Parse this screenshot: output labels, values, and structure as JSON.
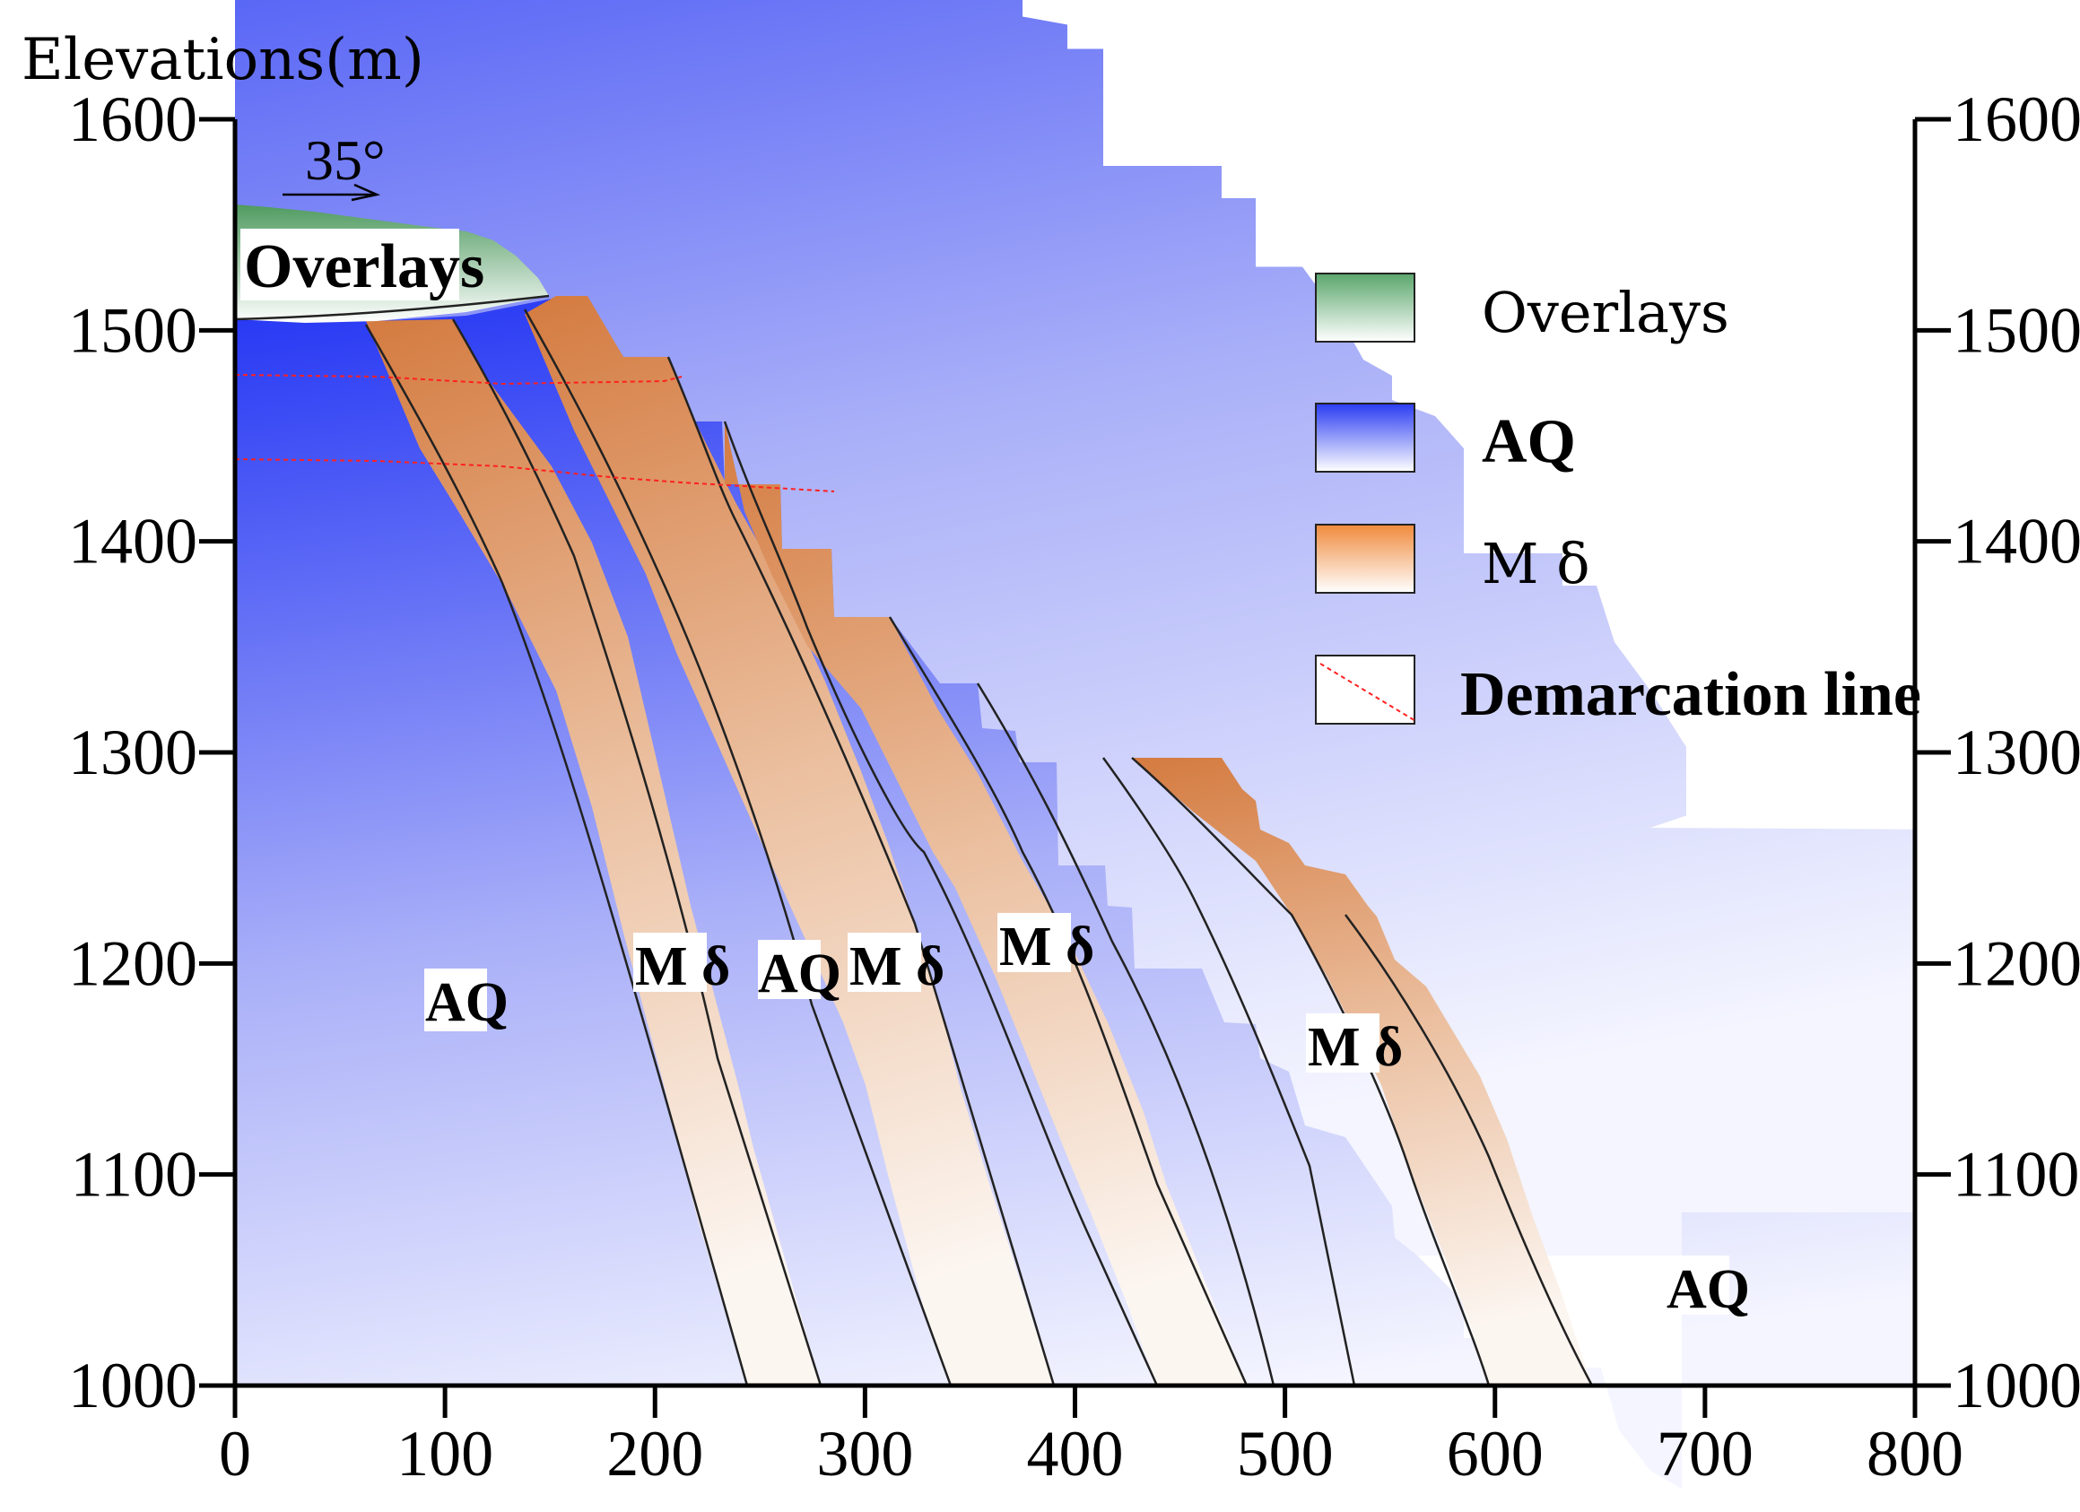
{
  "figure": {
    "y_axis_title": "Elevations(m)",
    "dip_label": "35°",
    "x_ticks": [
      "0",
      "100",
      "200",
      "300",
      "400",
      "500",
      "600",
      "700",
      "800"
    ],
    "y_ticks_left": [
      "1000",
      "1100",
      "1200",
      "1300",
      "1400",
      "1500",
      "1600"
    ],
    "y_ticks_right": [
      "1000",
      "1100",
      "1200",
      "1300",
      "1400",
      "1500",
      "1600"
    ],
    "x_range": [
      0,
      800
    ],
    "y_range": [
      1000,
      1600
    ]
  },
  "labels": {
    "overlays": "Overlays",
    "zone_aq_left": "AQ",
    "zone_md_1": "M δ",
    "zone_aq_2": "AQ",
    "zone_md_2": "M δ",
    "zone_md_3": "M δ",
    "zone_md_4": "M δ",
    "zone_aq_right": "AQ"
  },
  "legend": {
    "items": [
      {
        "label": "Overlays",
        "color_top": "#5aa66b",
        "color_bottom": "#ffffff"
      },
      {
        "label": "AQ",
        "color_top": "#2a3cf2",
        "color_bottom": "#ffffff"
      },
      {
        "label": "M δ",
        "color_top": "#f08a3c",
        "color_bottom": "#ffffff"
      },
      {
        "label": "Demarcation line",
        "line_color": "#ff2020"
      }
    ]
  },
  "colors": {
    "overlay": "#5aa66b",
    "aq": "#2a3cf2",
    "md": "#e2884f",
    "demarcation": "#ff2020",
    "axis": "#000000"
  }
}
